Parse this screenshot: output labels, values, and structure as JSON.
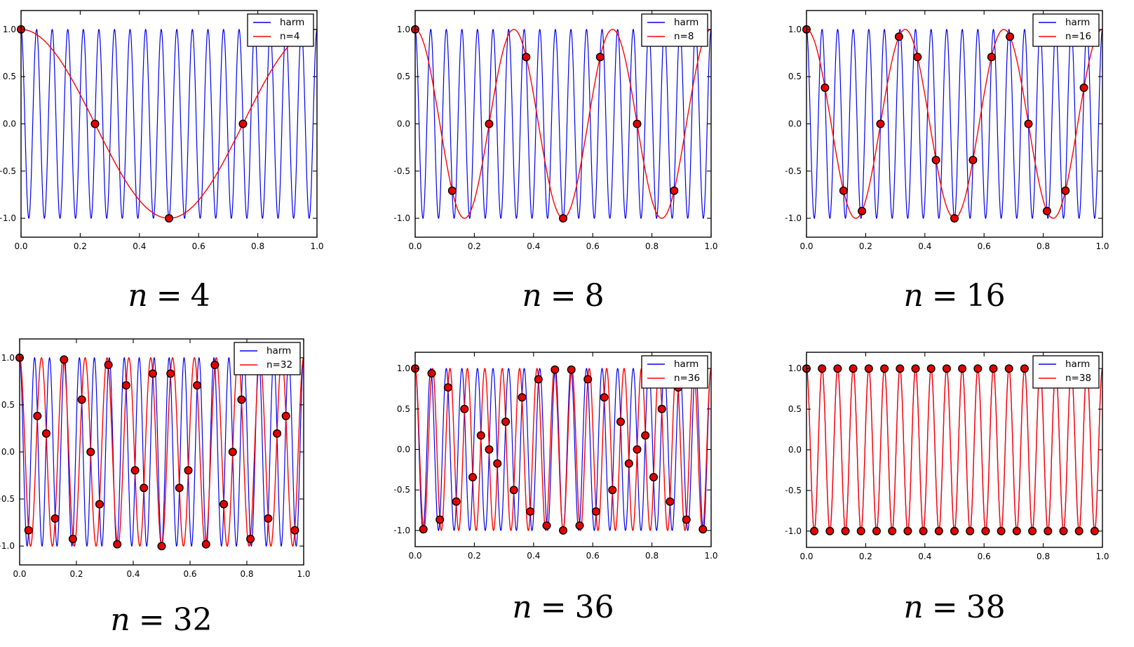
{
  "page": {
    "background": "#ffffff"
  },
  "colors": {
    "harm_line": "#0000ee",
    "alias_line": "#ff0000",
    "dot_fill": "#e60000",
    "dot_edge": "#000000",
    "axis": "#000000",
    "legend_border": "#000000",
    "legend_bg": "#ffffff",
    "text": "#000000"
  },
  "axes": {
    "xlim": [
      0,
      1
    ],
    "ylim": [
      -1.2,
      1.2
    ],
    "x_ticks": [
      0,
      0.2,
      0.4,
      0.6,
      0.8,
      1.0
    ],
    "x_tick_labels": [
      "0.0",
      "0.2",
      "0.4",
      "0.6",
      "0.8",
      "1.0"
    ],
    "y_ticks": [
      -1,
      -0.5,
      0,
      0.5,
      1
    ],
    "y_tick_labels": [
      "−1.0",
      "−0.5",
      "0.0",
      "0.5",
      "1.0"
    ],
    "grid": false,
    "legend_position": "upper right"
  },
  "chart_data": [
    {
      "type": "line",
      "caption": {
        "lhs": "n",
        "eq": "=",
        "rhs": "4"
      },
      "legend": [
        {
          "label": "harm",
          "color_key": "harm_line"
        },
        {
          "label": "n=4",
          "color_key": "alias_line"
        }
      ],
      "curves": [
        {
          "name": "harm",
          "kind": "cosine",
          "frequency": 19,
          "amplitude": 1,
          "color_key": "harm_line"
        },
        {
          "name": "n=4",
          "kind": "cosine",
          "frequency": 1,
          "amplitude": 1,
          "color_key": "alias_line"
        }
      ],
      "n_samples": 4,
      "samples_x": [
        0,
        0.25,
        0.5,
        0.75
      ],
      "samples_y": [
        1,
        0,
        -1,
        0
      ]
    },
    {
      "type": "line",
      "caption": {
        "lhs": "n",
        "eq": "=",
        "rhs": "8"
      },
      "legend": [
        {
          "label": "harm",
          "color_key": "harm_line"
        },
        {
          "label": "n=8",
          "color_key": "alias_line"
        }
      ],
      "curves": [
        {
          "name": "harm",
          "kind": "cosine",
          "frequency": 19,
          "amplitude": 1,
          "color_key": "harm_line"
        },
        {
          "name": "n=8",
          "kind": "cosine",
          "frequency": 3,
          "amplitude": 1,
          "color_key": "alias_line"
        }
      ],
      "n_samples": 8,
      "samples_x": [
        0,
        0.125,
        0.25,
        0.375,
        0.5,
        0.625,
        0.75,
        0.875
      ],
      "samples_y": [
        1,
        -0.7071,
        0,
        0.7071,
        -1,
        0.7071,
        0,
        -0.7071
      ]
    },
    {
      "type": "line",
      "caption": {
        "lhs": "n",
        "eq": "=",
        "rhs": "16"
      },
      "legend": [
        {
          "label": "harm",
          "color_key": "harm_line"
        },
        {
          "label": "n=16",
          "color_key": "alias_line"
        }
      ],
      "curves": [
        {
          "name": "harm",
          "kind": "cosine",
          "frequency": 19,
          "amplitude": 1,
          "color_key": "harm_line"
        },
        {
          "name": "n=16",
          "kind": "cosine",
          "frequency": 3,
          "amplitude": 1,
          "color_key": "alias_line"
        }
      ],
      "n_samples": 16,
      "samples_x": [
        0,
        0.0625,
        0.125,
        0.1875,
        0.25,
        0.3125,
        0.375,
        0.4375,
        0.5,
        0.5625,
        0.625,
        0.6875,
        0.75,
        0.8125,
        0.875,
        0.9375
      ],
      "samples_y": [
        1,
        0.3827,
        -0.7071,
        -0.9239,
        0,
        0.9239,
        0.7071,
        -0.3827,
        -1,
        -0.3827,
        0.7071,
        0.9239,
        0,
        -0.9239,
        -0.7071,
        0.3827
      ]
    },
    {
      "type": "line",
      "caption": {
        "lhs": "n",
        "eq": "=",
        "rhs": "32"
      },
      "legend": [
        {
          "label": "harm",
          "color_key": "harm_line"
        },
        {
          "label": "n=32",
          "color_key": "alias_line"
        }
      ],
      "curves": [
        {
          "name": "harm",
          "kind": "cosine",
          "frequency": 19,
          "amplitude": 1,
          "color_key": "harm_line"
        },
        {
          "name": "n=32",
          "kind": "cosine",
          "frequency": 13,
          "amplitude": 1,
          "color_key": "alias_line"
        }
      ],
      "n_samples": 32,
      "samples_x": [
        0,
        0.0313,
        0.0625,
        0.0938,
        0.125,
        0.1563,
        0.1875,
        0.2188,
        0.25,
        0.2813,
        0.3125,
        0.3438,
        0.375,
        0.4063,
        0.4375,
        0.4688,
        0.5,
        0.5313,
        0.5625,
        0.5938,
        0.625,
        0.6563,
        0.6875,
        0.7188,
        0.75,
        0.7813,
        0.8125,
        0.8438,
        0.875,
        0.9063,
        0.9375,
        0.9688
      ],
      "samples_y": [
        1,
        -0.8315,
        0.3827,
        0.1951,
        -0.7071,
        0.9808,
        -0.9239,
        0.5556,
        0,
        -0.5556,
        0.9239,
        -0.9808,
        0.7071,
        -0.1951,
        -0.3827,
        0.8315,
        -1,
        0.8315,
        -0.3827,
        -0.1951,
        0.7071,
        -0.9808,
        0.9239,
        -0.5556,
        0,
        0.5556,
        -0.9239,
        0.9808,
        -0.7071,
        0.1951,
        0.3827,
        -0.8315
      ]
    },
    {
      "type": "line",
      "caption": {
        "lhs": "n",
        "eq": "=",
        "rhs": "36"
      },
      "legend": [
        {
          "label": "harm",
          "color_key": "harm_line"
        },
        {
          "label": "n=36",
          "color_key": "alias_line"
        }
      ],
      "curves": [
        {
          "name": "harm",
          "kind": "cosine",
          "frequency": 19,
          "amplitude": 1,
          "color_key": "harm_line"
        },
        {
          "name": "n=36",
          "kind": "cosine",
          "frequency": 17,
          "amplitude": 1,
          "color_key": "alias_line"
        }
      ],
      "n_samples": 36,
      "samples_x": [
        0,
        0.0278,
        0.0556,
        0.0833,
        0.1111,
        0.1389,
        0.1667,
        0.1944,
        0.2222,
        0.25,
        0.2778,
        0.3056,
        0.3333,
        0.3611,
        0.3889,
        0.4167,
        0.4444,
        0.4722,
        0.5,
        0.5278,
        0.5556,
        0.5833,
        0.6111,
        0.6389,
        0.6667,
        0.6944,
        0.7222,
        0.75,
        0.7778,
        0.8056,
        0.8333,
        0.8611,
        0.8889,
        0.9167,
        0.9444,
        0.9722
      ],
      "samples_y": [
        1,
        -0.9848,
        0.9397,
        -0.866,
        0.766,
        -0.6428,
        0.5,
        -0.342,
        0.1736,
        0,
        -0.1736,
        0.342,
        -0.5,
        0.6428,
        -0.766,
        0.866,
        -0.9397,
        0.9848,
        -1,
        0.9848,
        -0.9397,
        0.866,
        -0.766,
        0.6428,
        -0.5,
        0.342,
        -0.1736,
        0,
        0.1736,
        -0.342,
        0.5,
        -0.6428,
        0.766,
        -0.866,
        0.9397,
        -0.9848
      ]
    },
    {
      "type": "line",
      "caption": {
        "lhs": "n",
        "eq": "=",
        "rhs": "38"
      },
      "legend": [
        {
          "label": "harm",
          "color_key": "harm_line"
        },
        {
          "label": "n=38",
          "color_key": "alias_line"
        }
      ],
      "curves": [
        {
          "name": "harm",
          "kind": "cosine",
          "frequency": 19,
          "amplitude": 1,
          "color_key": "harm_line"
        },
        {
          "name": "n=38",
          "kind": "cosine",
          "frequency": 19,
          "amplitude": 1,
          "color_key": "alias_line"
        }
      ],
      "n_samples": 38,
      "samples_x": [
        0,
        0.0263,
        0.0526,
        0.0789,
        0.1053,
        0.1316,
        0.1579,
        0.1842,
        0.2105,
        0.2368,
        0.2632,
        0.2895,
        0.3158,
        0.3421,
        0.3684,
        0.3947,
        0.4211,
        0.4474,
        0.4737,
        0.5,
        0.5263,
        0.5526,
        0.5789,
        0.6053,
        0.6316,
        0.6579,
        0.6842,
        0.7105,
        0.7368,
        0.7632,
        0.7895,
        0.8158,
        0.8421,
        0.8684,
        0.8947,
        0.9211,
        0.9474,
        0.9737
      ],
      "samples_y": [
        1,
        -1,
        1,
        -1,
        1,
        -1,
        1,
        -1,
        1,
        -1,
        1,
        -1,
        1,
        -1,
        1,
        -1,
        1,
        -1,
        1,
        -1,
        1,
        -1,
        1,
        -1,
        1,
        -1,
        1,
        -1,
        1,
        -1,
        1,
        -1,
        1,
        -1,
        1,
        -1,
        1,
        -1
      ]
    }
  ]
}
